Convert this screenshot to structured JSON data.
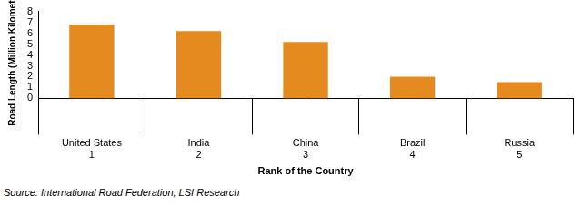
{
  "chart_data": {
    "type": "bar",
    "y_label": "Road Length (Million Kilometres)",
    "x_label": "Rank of the Country",
    "categories": [
      [
        "United States",
        "1"
      ],
      [
        "India",
        "2"
      ],
      [
        "China",
        "3"
      ],
      [
        "Brazil",
        "4"
      ],
      [
        "Russia",
        "5"
      ]
    ],
    "values": [
      6.8,
      6.2,
      5.2,
      2.0,
      1.5
    ],
    "color": "#e58a1f",
    "ylim": [
      0,
      8
    ],
    "yticks": [
      0,
      1,
      2,
      3,
      4,
      5,
      6,
      7,
      8
    ],
    "grid": false,
    "source": "Source: International Road Federation, LSI Research"
  }
}
